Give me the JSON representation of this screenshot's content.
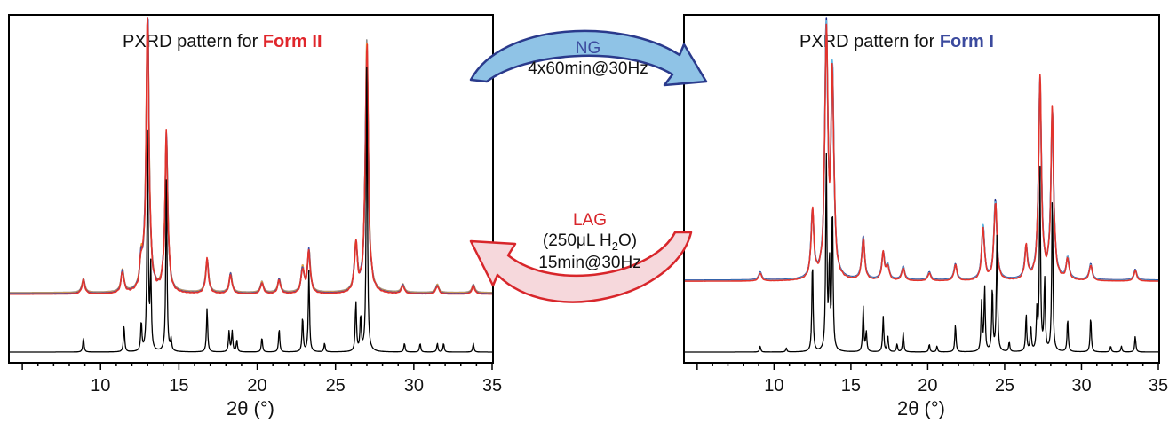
{
  "colors": {
    "frame": "#000000",
    "form2_accent": "#e0262b",
    "form1_accent": "#3b4a9e",
    "ng_arrow_fill": "#8fc3e6",
    "ng_arrow_stroke": "#2a3a8c",
    "lag_arrow_fill": "#f6d8dc",
    "lag_arrow_stroke": "#d8262b",
    "ng_text": "#3b4a9e",
    "lag_text": "#d8262b",
    "exp_red": "#e3332c",
    "exp_grey": "#8d8d8d",
    "exp_orange": "#f0a030",
    "exp_blue": "#3b4fb0",
    "exp_cyan": "#5ab6e0",
    "exp_navy": "#1f2f8a",
    "ref_black": "#000000"
  },
  "arrows": {
    "ng": {
      "line1": "NG",
      "line2": "4x60min@30Hz"
    },
    "lag": {
      "line1": "LAG",
      "line2_pre": "(250μL H",
      "line2_sub": "2",
      "line2_post": "O)",
      "line3": "15min@30Hz"
    }
  },
  "chart_data": [
    {
      "type": "line",
      "title_prefix": "PXRD pattern for ",
      "title_highlight": "Form II",
      "xlabel": "2θ (°)",
      "xlim": [
        4.2,
        35
      ],
      "xticks": [
        10,
        15,
        20,
        25,
        30,
        35
      ],
      "reference_peaks": [
        {
          "x": 8.9,
          "h": 0.05
        },
        {
          "x": 11.5,
          "h": 0.09
        },
        {
          "x": 12.6,
          "h": 0.1
        },
        {
          "x": 13.0,
          "h": 0.75
        },
        {
          "x": 13.2,
          "h": 0.28
        },
        {
          "x": 14.2,
          "h": 0.6
        },
        {
          "x": 14.5,
          "h": 0.04
        },
        {
          "x": 16.8,
          "h": 0.15
        },
        {
          "x": 18.2,
          "h": 0.07
        },
        {
          "x": 18.4,
          "h": 0.07
        },
        {
          "x": 18.7,
          "h": 0.04
        },
        {
          "x": 20.3,
          "h": 0.05
        },
        {
          "x": 21.4,
          "h": 0.08
        },
        {
          "x": 22.9,
          "h": 0.12
        },
        {
          "x": 23.3,
          "h": 0.28
        },
        {
          "x": 24.3,
          "h": 0.03
        },
        {
          "x": 26.3,
          "h": 0.17
        },
        {
          "x": 26.6,
          "h": 0.12
        },
        {
          "x": 27.0,
          "h": 1.0
        },
        {
          "x": 29.4,
          "h": 0.03
        },
        {
          "x": 30.4,
          "h": 0.03
        },
        {
          "x": 31.5,
          "h": 0.03
        },
        {
          "x": 31.9,
          "h": 0.03
        },
        {
          "x": 33.8,
          "h": 0.03
        }
      ],
      "measured_peaks": [
        {
          "x": 8.9,
          "h": 0.05
        },
        {
          "x": 11.4,
          "h": 0.08
        },
        {
          "x": 12.6,
          "h": 0.1
        },
        {
          "x": 13.0,
          "h": 1.0
        },
        {
          "x": 14.2,
          "h": 0.55
        },
        {
          "x": 16.8,
          "h": 0.12
        },
        {
          "x": 18.3,
          "h": 0.07
        },
        {
          "x": 20.3,
          "h": 0.04
        },
        {
          "x": 21.4,
          "h": 0.05
        },
        {
          "x": 22.9,
          "h": 0.09
        },
        {
          "x": 23.3,
          "h": 0.15
        },
        {
          "x": 26.3,
          "h": 0.17
        },
        {
          "x": 27.0,
          "h": 0.92
        },
        {
          "x": 29.3,
          "h": 0.03
        },
        {
          "x": 31.5,
          "h": 0.03
        },
        {
          "x": 33.8,
          "h": 0.03
        }
      ],
      "measured_series_colors": [
        "#8d8d8d",
        "#f0a030",
        "#3b4fb0",
        "#e3332c"
      ]
    },
    {
      "type": "line",
      "title_prefix": "PXRD pattern for ",
      "title_highlight": "Form I",
      "xlabel": "2θ (°)",
      "xlim": [
        4.2,
        35
      ],
      "xticks": [
        10,
        15,
        20,
        25,
        30,
        35
      ],
      "reference_peaks": [
        {
          "x": 9.1,
          "h": 0.03
        },
        {
          "x": 10.8,
          "h": 0.02
        },
        {
          "x": 12.5,
          "h": 0.47
        },
        {
          "x": 13.4,
          "h": 1.0
        },
        {
          "x": 13.6,
          "h": 0.45
        },
        {
          "x": 13.8,
          "h": 0.75
        },
        {
          "x": 15.8,
          "h": 0.23
        },
        {
          "x": 16.0,
          "h": 0.1
        },
        {
          "x": 17.1,
          "h": 0.18
        },
        {
          "x": 17.4,
          "h": 0.08
        },
        {
          "x": 18.0,
          "h": 0.04
        },
        {
          "x": 18.4,
          "h": 0.1
        },
        {
          "x": 20.1,
          "h": 0.04
        },
        {
          "x": 20.6,
          "h": 0.03
        },
        {
          "x": 21.8,
          "h": 0.14
        },
        {
          "x": 23.5,
          "h": 0.25
        },
        {
          "x": 23.7,
          "h": 0.33
        },
        {
          "x": 24.2,
          "h": 0.33
        },
        {
          "x": 24.5,
          "h": 0.6
        },
        {
          "x": 25.3,
          "h": 0.05
        },
        {
          "x": 26.4,
          "h": 0.19
        },
        {
          "x": 26.7,
          "h": 0.13
        },
        {
          "x": 27.1,
          "h": 0.2
        },
        {
          "x": 27.3,
          "h": 0.93
        },
        {
          "x": 27.6,
          "h": 0.37
        },
        {
          "x": 28.1,
          "h": 0.82
        },
        {
          "x": 29.1,
          "h": 0.17
        },
        {
          "x": 30.6,
          "h": 0.18
        },
        {
          "x": 31.9,
          "h": 0.03
        },
        {
          "x": 32.6,
          "h": 0.03
        },
        {
          "x": 33.5,
          "h": 0.08
        }
      ],
      "measured_peaks": [
        {
          "x": 9.1,
          "h": 0.03
        },
        {
          "x": 12.5,
          "h": 0.25
        },
        {
          "x": 13.4,
          "h": 0.95
        },
        {
          "x": 13.8,
          "h": 0.75
        },
        {
          "x": 15.8,
          "h": 0.16
        },
        {
          "x": 17.1,
          "h": 0.1
        },
        {
          "x": 17.4,
          "h": 0.05
        },
        {
          "x": 18.4,
          "h": 0.05
        },
        {
          "x": 20.1,
          "h": 0.03
        },
        {
          "x": 21.8,
          "h": 0.06
        },
        {
          "x": 23.6,
          "h": 0.2
        },
        {
          "x": 24.4,
          "h": 0.3
        },
        {
          "x": 26.4,
          "h": 0.12
        },
        {
          "x": 27.3,
          "h": 0.75
        },
        {
          "x": 28.1,
          "h": 0.62
        },
        {
          "x": 29.1,
          "h": 0.08
        },
        {
          "x": 30.6,
          "h": 0.06
        },
        {
          "x": 33.5,
          "h": 0.04
        }
      ],
      "measured_series_colors": [
        "#1f2f8a",
        "#5ab6e0",
        "#e3332c"
      ]
    }
  ]
}
